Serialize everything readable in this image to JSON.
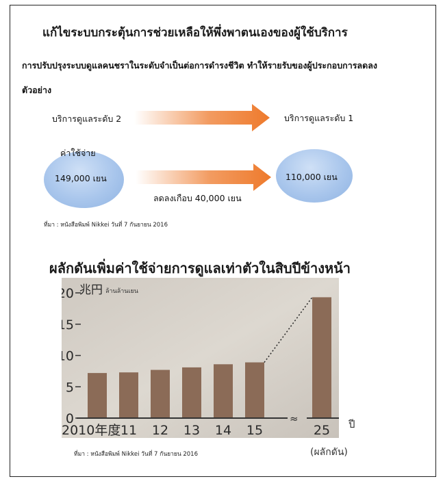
{
  "heading": "แก้ไขระบบกระตุ้นการช่วยเหลือให้พึ่งพาตนเองของผู้ใช้บริการ",
  "intro": {
    "line1": "การปรับปรุงระบบดูแลคนชราในระดับจำเป็นต่อการดำรงชีวิต ทำให้รายรับของผู้ประกอบการลดลง",
    "line2": "ตัวอย่าง"
  },
  "comparison": {
    "from_label": "บริการดูแลระดับ 2",
    "to_label": "บริการดูแลระดับ 1",
    "cost_label": "ค่าใช้จ่าย",
    "from_cost": "149,000 เยน",
    "to_cost": "110,000 เยน",
    "reduction": "ลดลงเกือบ 40,000 เยน",
    "source": "ที่มา : หนังสือพิมพ์ Nikkei วันที่ 7 กันยายน 2016",
    "colors": {
      "arrow": "#ee7a2c",
      "bubble": "#a9c6ec"
    }
  },
  "chart_section": {
    "title": "ผลักดันเพิ่มค่าใช้จ่ายการดูแลเท่าตัวในสิบปีข้างหน้า",
    "year_suffix": "ปี",
    "projection_note": "(ผลักดัน)",
    "source": "ที่มา : หนังสือพิมพ์ Nikkei วันที่ 7 กันยายน 2016"
  },
  "chart_data": {
    "type": "bar",
    "unit_label": "兆円",
    "unit_label_thai": "ล้านล้านเยน",
    "categories": [
      "2010年度",
      "11",
      "12",
      "13",
      "14",
      "15",
      "25"
    ],
    "values": [
      7.2,
      7.3,
      7.7,
      8.1,
      8.6,
      8.9,
      19.3
    ],
    "yticks": [
      0,
      5,
      10,
      15,
      20
    ],
    "ylim": [
      0,
      20
    ],
    "axis_break_after_index": 5,
    "projected_index": 6,
    "colors": {
      "bar": "#8b6b57",
      "background": "#d9d3cb"
    }
  }
}
